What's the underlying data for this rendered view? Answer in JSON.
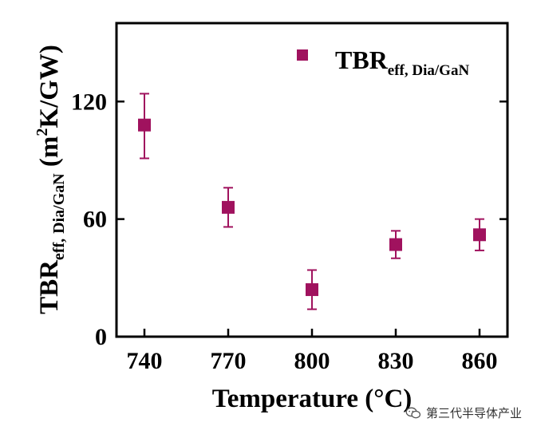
{
  "chart_data": {
    "type": "scatter",
    "x": [
      740,
      770,
      800,
      830,
      860
    ],
    "y": [
      108,
      66,
      24,
      47,
      52
    ],
    "y_err_low": [
      17,
      10,
      10,
      7,
      8
    ],
    "y_err_high": [
      16,
      10,
      10,
      7,
      8
    ],
    "xlabel": "Temperature (°C)",
    "ylabel": {
      "prefix": "TBR",
      "sub1": "eff,",
      "sub2": "Dia/GaN",
      "unit_open": " (m",
      "unit_sup": "2",
      "unit_rest": "K/GW)"
    },
    "legend": {
      "label_main": "TBR",
      "label_sub": "eff, Dia/GaN",
      "position": "top-right"
    },
    "xticks": [
      740,
      770,
      800,
      830,
      860
    ],
    "yticks": [
      0,
      60,
      120
    ],
    "xlim": [
      730,
      870
    ],
    "ylim": [
      0,
      160
    ],
    "grid": false,
    "marker": "square",
    "color": "#A0125E"
  },
  "watermark": {
    "text": "第三代半导体产业",
    "icon": "wechat-icon"
  }
}
